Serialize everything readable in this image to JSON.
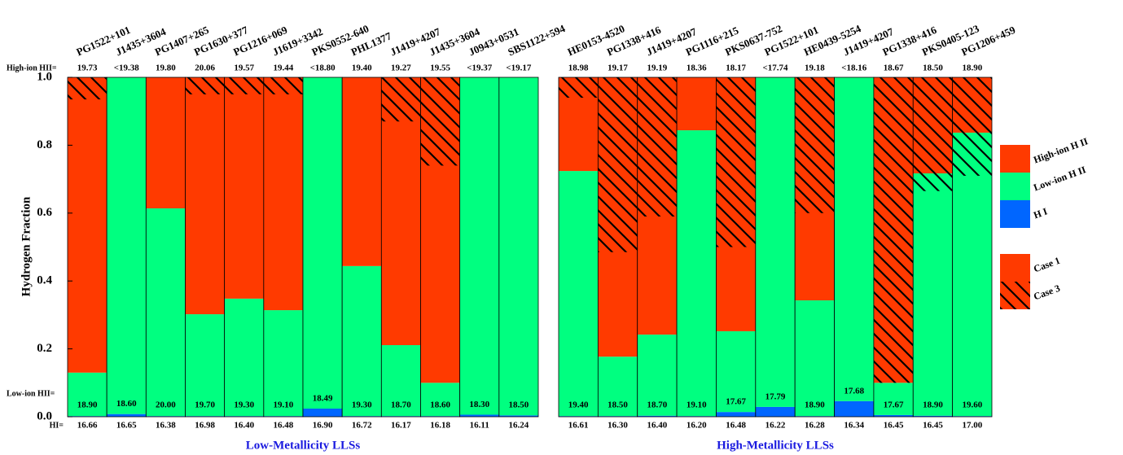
{
  "chart_data": [
    {
      "type": "stacked-bar",
      "title": "Low-Metallicity LLSs",
      "ylabel": "Hydrogen Fraction",
      "ylim": [
        0,
        1
      ],
      "yticks": [
        {
          "value": 0,
          "label": "0.0"
        },
        0.2,
        0.4,
        0.6,
        0.8,
        {
          "value": 1,
          "label": "1.0"
        }
      ],
      "row_labels": [
        "High-ion HII=",
        "Low-ion HII=",
        "HI="
      ],
      "case_legend": [
        {
          "name": "Case 1",
          "color": "#ff3a00"
        },
        {
          "name": "Case 3",
          "color": "#ff3a00"
        }
      ],
      "categories": [
        "PG1522+101",
        "J1435+3604",
        "PG1407+265",
        "PG1630+377",
        "PG1216+069",
        "J1619+3342",
        "PKS0552-640",
        "PHL1377",
        "J1419+4207",
        "J1435+3604",
        "J0943+0531",
        "SBS1122+594"
      ],
      "high_ion_labels": [
        "19.73",
        "<19.38",
        "19.80",
        "20.06",
        "19.57",
        "19.44",
        "<18.80",
        "19.40",
        "19.27",
        "19.55",
        "<19.37",
        "<19.17"
      ],
      "low_ion_labels": [
        "18.90",
        "18.60",
        "20.00",
        "19.70",
        "19.30",
        "19.10",
        "18.49",
        "19.30",
        "18.70",
        "18.60",
        "18.30",
        "18.50"
      ],
      "hi_labels": [
        "16.66",
        "16.65",
        "16.38",
        "16.98",
        "16.40",
        "16.48",
        "16.90",
        "16.72",
        "16.17",
        "16.18",
        "16.11",
        "16.24"
      ],
      "series": [
        {
          "name": "H I",
          "color": "#0066ff",
          "values": [
            0.002,
            0.008,
            0.002,
            0.002,
            0.002,
            0.002,
            0.024,
            0.002,
            0.002,
            0.002,
            0.006,
            0.004
          ]
        },
        {
          "name": "Low-ion H II",
          "color": "#00ff80",
          "values": [
            0.128,
            0.992,
            0.612,
            0.3,
            0.346,
            0.312,
            0.976,
            0.442,
            0.209,
            0.098,
            0.994,
            0.996
          ]
        },
        {
          "name": "High-ion H II",
          "color": "#ff3a00",
          "values": [
            0.87,
            0,
            0.386,
            0.698,
            0.652,
            0.686,
            0,
            0.556,
            0.789,
            0.9,
            0,
            0
          ]
        }
      ],
      "hatch": [
        0.065,
        0,
        0,
        0.05,
        0.05,
        0.05,
        0,
        0,
        0.13,
        0.26,
        0,
        0
      ]
    },
    {
      "type": "stacked-bar",
      "title": "High-Metallicity LLSs",
      "ylim": [
        0,
        1
      ],
      "categories": [
        "HE0153-4520",
        "PG1338+416",
        "J1419+4207",
        "PG1116+215",
        "PKS0637-752",
        "PG1522+101",
        "HE0439-5254",
        "J1419+4207",
        "PG1338+416",
        "PKS0405-123",
        "PG1206+459"
      ],
      "high_ion_labels": [
        "18.98",
        "19.17",
        "19.19",
        "18.36",
        "18.17",
        "<17.74",
        "19.18",
        "<18.16",
        "18.67",
        "18.50",
        "18.90"
      ],
      "low_ion_labels": [
        "19.40",
        "18.50",
        "18.70",
        "19.10",
        "17.67",
        "17.79",
        "18.90",
        "17.68",
        "17.67",
        "18.90",
        "19.60"
      ],
      "hi_labels": [
        "16.61",
        "16.30",
        "16.40",
        "16.20",
        "16.48",
        "16.22",
        "16.28",
        "16.34",
        "16.45",
        "16.45",
        "17.00"
      ],
      "series": [
        {
          "name": "H I",
          "color": "#0066ff",
          "values": [
            0.002,
            0.002,
            0.003,
            0.002,
            0.014,
            0.029,
            0.002,
            0.046,
            0.005,
            0.003,
            0.002
          ]
        },
        {
          "name": "Low-ion H II",
          "color": "#00ff80",
          "values": [
            0.722,
            0.175,
            0.239,
            0.842,
            0.238,
            0.971,
            0.341,
            0.954,
            0.095,
            0.714,
            0.835
          ]
        },
        {
          "name": "High-ion H II",
          "color": "#ff3a00",
          "values": [
            0.276,
            0.823,
            0.758,
            0.156,
            0.748,
            0,
            0.657,
            0,
            0.9,
            0.283,
            0.163
          ]
        }
      ],
      "hatch": [
        0.06,
        0.515,
        0.41,
        0,
        0.5,
        0,
        0.4,
        0,
        0.9,
        0.335,
        0.29
      ]
    }
  ]
}
